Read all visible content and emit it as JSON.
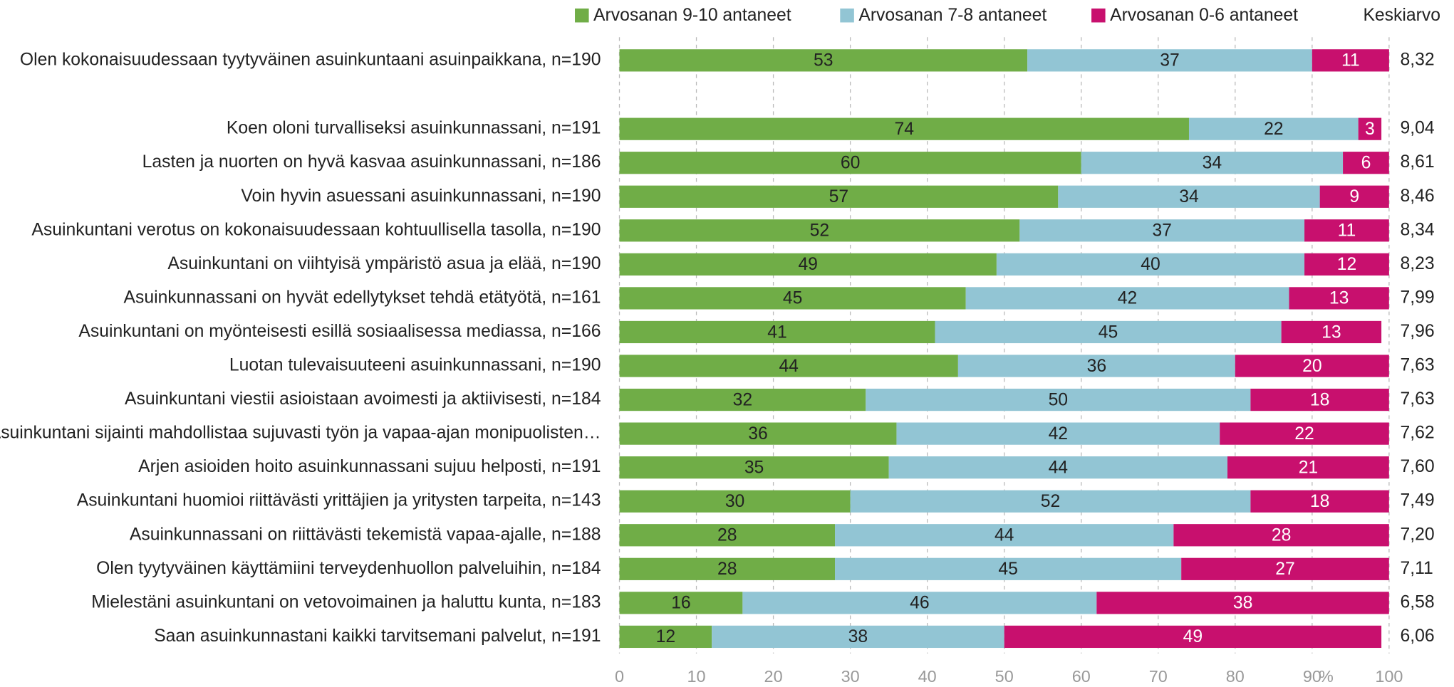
{
  "chart_data": {
    "type": "stacked_barh",
    "categories": [
      "Olen kokonaisuudessaan tyytyväinen asuinkuntaani asuinpaikkana, n=190",
      "Koen oloni turvalliseksi asuinkunnassani, n=191",
      "Lasten ja nuorten on hyvä kasvaa asuinkunnassani, n=186",
      "Voin hyvin asuessani asuinkunnassani, n=190",
      "Asuinkuntani verotus on kokonaisuudessaan kohtuullisella tasolla, n=190",
      "Asuinkuntani on viihtyisä ympäristö asua ja elää, n=190",
      "Asuinkunnassani on hyvät edellytykset tehdä etätyötä, n=161",
      "Asuinkuntani on myönteisesti esillä sosiaalisessa mediassa, n=166",
      "Luotan tulevaisuuteeni asuinkunnassani, n=190",
      "Asuinkuntani viestii asioistaan avoimesti ja aktiivisesti, n=184",
      "Asuinkuntani sijainti mahdollistaa sujuvasti työn ja vapaa-ajan monipuolisten…",
      "Arjen asioiden hoito asuinkunnassani sujuu helposti, n=191",
      "Asuinkuntani huomioi riittävästi yrittäjien ja yritysten tarpeita, n=143",
      "Asuinkunnassani on riittävästi tekemistä vapaa-ajalle, n=188",
      "Olen tyytyväinen käyttämiini terveydenhuollon palveluihin, n=184",
      "Mielestäni asuinkuntani on vetovoimainen ja haluttu kunta, n=183",
      "Saan asuinkunnastani kaikki tarvitsemani palvelut, n=191"
    ],
    "series": [
      {
        "name": "Arvosanan 9-10 antaneet",
        "color": "#70ad47",
        "label_color": "#222",
        "values": [
          53,
          74,
          60,
          57,
          52,
          49,
          45,
          41,
          44,
          32,
          36,
          35,
          30,
          28,
          28,
          16,
          12
        ]
      },
      {
        "name": "Arvosanan 7-8 antaneet",
        "color": "#92c5d4",
        "label_color": "#222",
        "values": [
          37,
          22,
          34,
          34,
          37,
          40,
          42,
          45,
          36,
          50,
          42,
          44,
          52,
          44,
          45,
          46,
          38
        ]
      },
      {
        "name": "Arvosanan 0-6 antaneet",
        "color": "#c8106e",
        "label_color": "#fff",
        "values": [
          11,
          3,
          6,
          9,
          11,
          12,
          13,
          13,
          20,
          18,
          22,
          21,
          18,
          28,
          27,
          38,
          49
        ]
      }
    ],
    "mean_header": "Keskiarvo",
    "means": [
      "8,32",
      "9,04",
      "8,61",
      "8,46",
      "8,34",
      "8,23",
      "7,99",
      "7,96",
      "7,63",
      "7,63",
      "7,62",
      "7,60",
      "7,49",
      "7,20",
      "7,11",
      "6,58",
      "6,06"
    ],
    "xlim": [
      0,
      100
    ],
    "xticks": [
      0,
      10,
      20,
      30,
      40,
      50,
      60,
      70,
      80,
      90,
      100
    ],
    "x_unit": "%",
    "grid": true
  }
}
